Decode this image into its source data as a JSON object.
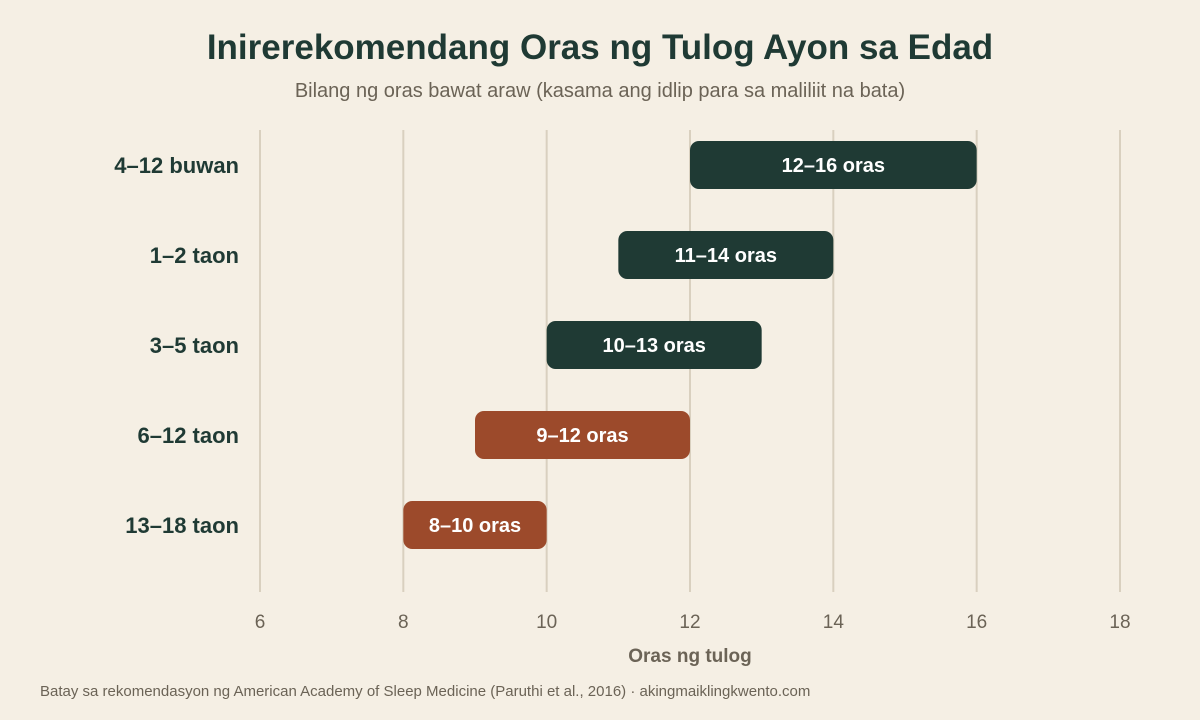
{
  "colors": {
    "background": "#f5efe4",
    "grid": "#d9d0bf",
    "label": "#1f3a34",
    "muted": "#6b6356",
    "dark_bar": "#1f3a34",
    "rust_bar": "#9c4a2b",
    "bar_text": "#ffffff"
  },
  "chart_data": {
    "type": "bar",
    "orientation": "horizontal-range",
    "title": "Inirerekomendang Oras ng Tulog Ayon sa Edad",
    "subtitle": "Bilang ng oras bawat araw (kasama ang idlip para sa maliliit na bata)",
    "xlabel": "Oras ng tulog",
    "xlim": [
      6,
      18
    ],
    "xticks": [
      6,
      8,
      10,
      12,
      14,
      16,
      18
    ],
    "grid": true,
    "categories": [
      "4–12 buwan",
      "1–2 taon",
      "3–5 taon",
      "6–12 taon",
      "13–18 taon"
    ],
    "ranges": [
      {
        "category": "4–12 buwan",
        "min": 12,
        "max": 16,
        "label": "12–16 oras",
        "color": "#1f3a34"
      },
      {
        "category": "1–2 taon",
        "min": 11,
        "max": 14,
        "label": "11–14 oras",
        "color": "#1f3a34"
      },
      {
        "category": "3–5 taon",
        "min": 10,
        "max": 13,
        "label": "10–13 oras",
        "color": "#1f3a34"
      },
      {
        "category": "6–12 taon",
        "min": 9,
        "max": 12,
        "label": "9–12 oras",
        "color": "#9c4a2b"
      },
      {
        "category": "13–18 taon",
        "min": 8,
        "max": 10,
        "label": "8–10 oras",
        "color": "#9c4a2b"
      }
    ],
    "source": "Batay sa rekomendasyon ng American Academy of Sleep Medicine (Paruthi et al., 2016) · akingmaiklingkwento.com"
  }
}
